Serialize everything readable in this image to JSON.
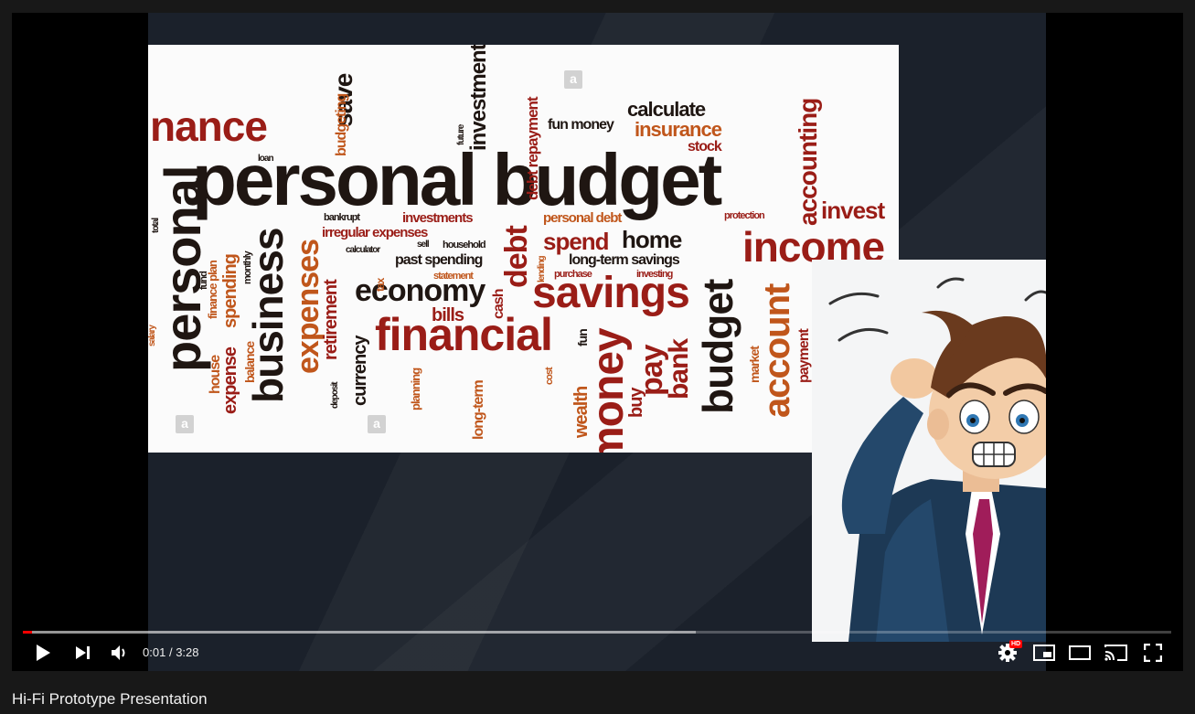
{
  "video": {
    "title": "Hi-Fi Prototype Presentation",
    "current_time": "0:01",
    "separator": "/",
    "duration": "3:28",
    "progress_played_fraction": 0.008,
    "progress_loaded_fraction": 0.586,
    "quality_badge": "HD",
    "progress_color": "#ff0000"
  },
  "slide": {
    "watermark_glyph": "a",
    "wordcloud": {
      "words": [
        "nance",
        "personal budget",
        "calculate",
        "insurance",
        "stock",
        "fun money",
        "investment",
        "save",
        "budgeting",
        "debt repayment",
        "accounting",
        "invest",
        "income",
        "savings",
        "financial",
        "economy",
        "business",
        "personal",
        "expenses",
        "retirement",
        "currency",
        "home",
        "spend",
        "personal debt",
        "investments",
        "irregular expenses",
        "past spending",
        "long-term savings",
        "household",
        "bankrupt",
        "bills",
        "money",
        "pay",
        "bank",
        "buy",
        "budget",
        "account",
        "payment",
        "market",
        "wealth",
        "fun",
        "debt",
        "cash",
        "house",
        "finance plan",
        "balance",
        "expense",
        "spending",
        "monthly",
        "fund",
        "bill",
        "tax",
        "statement",
        "purchase",
        "investing",
        "cost",
        "protection",
        "loan",
        "family",
        "future",
        "deposit",
        "planning",
        "long-term",
        "sell",
        "salary",
        "total",
        "lending",
        "calculator"
      ]
    }
  },
  "controls": {
    "play": "play-icon",
    "next": "next-icon",
    "volume": "volume-icon",
    "settings": "settings-icon",
    "miniplayer": "miniplayer-icon",
    "theater": "theater-mode-icon",
    "cast": "cast-icon",
    "fullscreen": "fullscreen-icon"
  }
}
